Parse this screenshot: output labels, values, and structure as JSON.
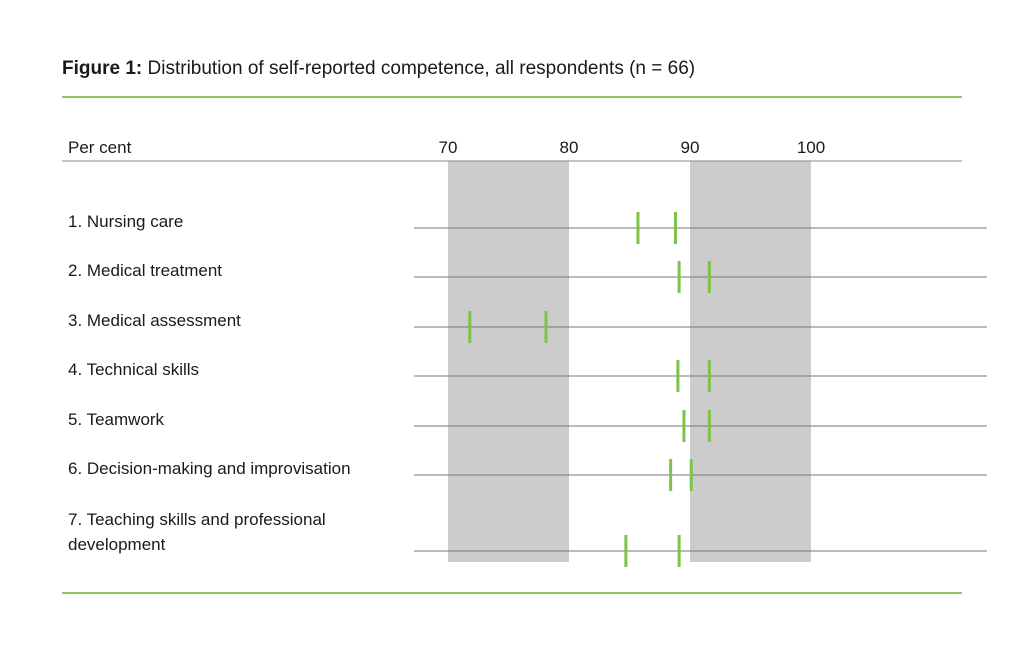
{
  "title_bold": "Figure 1:",
  "title_text": "Distribution of self-reported competence, all respondents (n = 66)",
  "chart_data": {
    "type": "scatter",
    "ylabel": "Per cent",
    "xlim": [
      70,
      100
    ],
    "xticks": [
      70,
      80,
      90,
      100
    ],
    "shaded_ranges": [
      [
        70,
        80
      ],
      [
        90,
        100
      ]
    ],
    "categories": [
      "1. Nursing care",
      "2. Medical treatment",
      "3. Medical assessment",
      "4. Technical skills",
      "5. Teamwork",
      "6. Decision-making and improvisation",
      "7. Teaching skills and professional development"
    ],
    "values": [
      [
        85.7,
        88.8
      ],
      [
        89.1,
        91.6
      ],
      [
        71.8,
        78.1
      ],
      [
        89.0,
        91.6
      ],
      [
        89.5,
        91.6
      ],
      [
        88.4,
        90.1
      ],
      [
        84.7,
        89.1
      ]
    ],
    "marker_color": "#7dc34a",
    "shade_color": "#cccccc",
    "rule_color": "#8cc860"
  }
}
